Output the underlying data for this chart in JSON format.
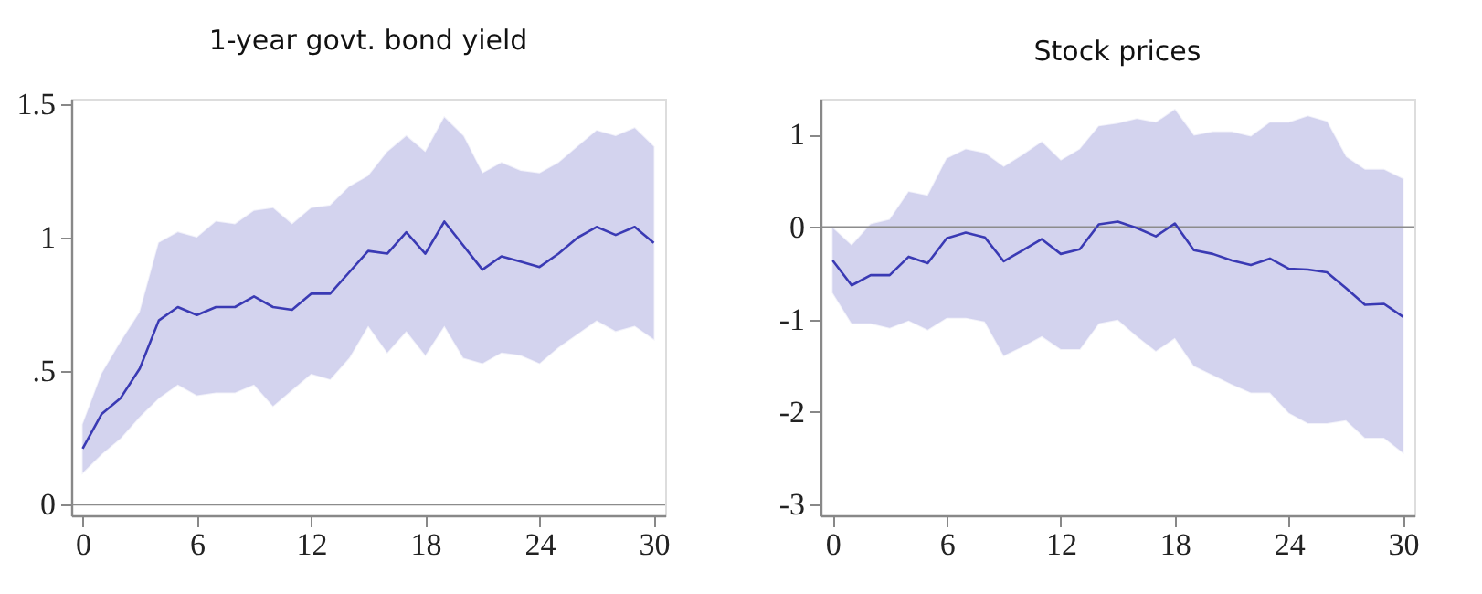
{
  "chart_data": [
    {
      "type": "line",
      "title": "1-year govt. bond yield",
      "x": [
        0,
        1,
        2,
        3,
        4,
        5,
        6,
        7,
        8,
        9,
        10,
        11,
        12,
        13,
        14,
        15,
        16,
        17,
        18,
        19,
        20,
        21,
        22,
        23,
        24,
        25,
        26,
        27,
        28,
        29,
        30
      ],
      "series": [
        {
          "color": "#3a3ab4",
          "values": [
            0.21,
            0.34,
            0.4,
            0.51,
            0.69,
            0.74,
            0.71,
            0.74,
            0.74,
            0.78,
            0.74,
            0.73,
            0.79,
            0.79,
            0.87,
            0.95,
            0.94,
            1.02,
            0.94,
            1.06,
            0.97,
            0.88,
            0.93,
            0.91,
            0.89,
            0.94,
            1.0,
            1.04,
            1.01,
            1.04,
            0.98
          ],
          "lower": [
            0.12,
            0.19,
            0.25,
            0.33,
            0.4,
            0.45,
            0.41,
            0.42,
            0.42,
            0.45,
            0.37,
            0.43,
            0.49,
            0.47,
            0.55,
            0.67,
            0.57,
            0.65,
            0.56,
            0.67,
            0.55,
            0.53,
            0.57,
            0.56,
            0.53,
            0.59,
            0.64,
            0.69,
            0.65,
            0.67,
            0.62
          ],
          "upper": [
            0.3,
            0.49,
            0.61,
            0.72,
            0.98,
            1.02,
            1.0,
            1.06,
            1.05,
            1.1,
            1.11,
            1.05,
            1.11,
            1.12,
            1.19,
            1.23,
            1.32,
            1.38,
            1.32,
            1.45,
            1.38,
            1.24,
            1.28,
            1.25,
            1.24,
            1.28,
            1.34,
            1.4,
            1.38,
            1.41,
            1.34
          ]
        }
      ],
      "xlim": [
        -0.6,
        30.6
      ],
      "xticks": [
        0,
        6,
        12,
        18,
        24,
        30
      ],
      "ylim": [
        -0.04,
        1.52
      ],
      "yticks": [
        0,
        {
          "value": 0.5,
          "label": ".5"
        },
        1,
        1.5
      ],
      "ref_lines": [
        {
          "axis": "y",
          "value": 0,
          "color": "#8c8c8c"
        }
      ],
      "grid": false
    },
    {
      "type": "line",
      "title": "Stock prices",
      "x": [
        0,
        1,
        2,
        3,
        4,
        5,
        6,
        7,
        8,
        9,
        10,
        11,
        12,
        13,
        14,
        15,
        16,
        17,
        18,
        19,
        20,
        21,
        22,
        23,
        24,
        25,
        26,
        27,
        28,
        29,
        30
      ],
      "series": [
        {
          "color": "#3a3ab4",
          "values": [
            -0.36,
            -0.63,
            -0.52,
            -0.52,
            -0.32,
            -0.39,
            -0.12,
            -0.06,
            -0.11,
            -0.37,
            -0.25,
            -0.13,
            -0.29,
            -0.24,
            0.03,
            0.06,
            -0.01,
            -0.1,
            0.04,
            -0.25,
            -0.29,
            -0.36,
            -0.41,
            -0.34,
            -0.45,
            -0.46,
            -0.49,
            -0.66,
            -0.84,
            -0.83,
            -0.97
          ],
          "lower": [
            -0.71,
            -1.04,
            -1.04,
            -1.09,
            -1.01,
            -1.11,
            -0.98,
            -0.98,
            -1.02,
            -1.39,
            -1.29,
            -1.18,
            -1.32,
            -1.32,
            -1.04,
            -1.0,
            -1.18,
            -1.34,
            -1.2,
            -1.5,
            -1.6,
            -1.7,
            -1.79,
            -1.79,
            -2.01,
            -2.12,
            -2.12,
            -2.09,
            -2.28,
            -2.28,
            -2.44
          ],
          "upper": [
            -0.01,
            -0.2,
            0.03,
            0.08,
            0.38,
            0.34,
            0.74,
            0.84,
            0.8,
            0.65,
            0.78,
            0.92,
            0.72,
            0.84,
            1.09,
            1.12,
            1.17,
            1.13,
            1.27,
            0.99,
            1.03,
            1.03,
            0.98,
            1.13,
            1.13,
            1.2,
            1.14,
            0.76,
            0.62,
            0.62,
            0.52
          ]
        }
      ],
      "xlim": [
        -0.64,
        30.6
      ],
      "xticks": [
        0,
        6,
        12,
        18,
        24,
        30
      ],
      "ylim": [
        -3.12,
        1.39
      ],
      "yticks": [
        -3,
        -2,
        -1,
        0,
        1
      ],
      "ref_lines": [
        {
          "axis": "y",
          "value": 0,
          "color": "#8c8c8c"
        }
      ],
      "grid": false
    }
  ]
}
